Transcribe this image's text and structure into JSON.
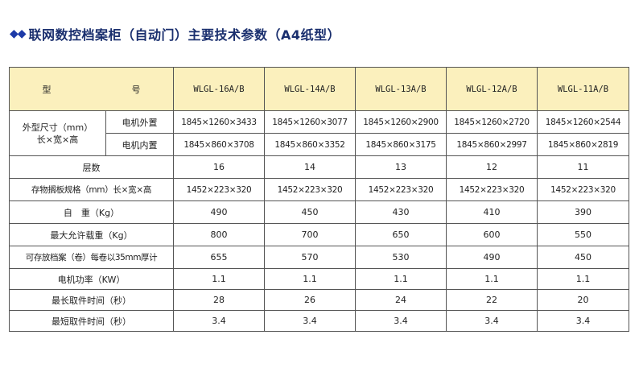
{
  "heading": {
    "bullets": "◆◆",
    "text": "联网数控档案柜（自动门）主要技术参数（A4纸型）"
  },
  "table": {
    "model_header": "型　　号",
    "models": [
      "WLGL-16A/B",
      "WLGL-14A/B",
      "WLGL-13A/B",
      "WLGL-12A/B",
      "WLGL-11A/B"
    ],
    "size_group": {
      "label_line1": "外型尺寸（mm）",
      "label_line2": "长×宽×高",
      "external": {
        "label": "电机外置",
        "values": [
          "1845×1260×3433",
          "1845×1260×3077",
          "1845×1260×2900",
          "1845×1260×2720",
          "1845×1260×2544"
        ]
      },
      "internal": {
        "label": "电机内置",
        "values": [
          "1845×860×3708",
          "1845×860×3352",
          "1845×860×3175",
          "1845×860×2997",
          "1845×860×2819"
        ]
      }
    },
    "rows": [
      {
        "label": "层数",
        "values": [
          "16",
          "14",
          "13",
          "12",
          "11"
        ]
      },
      {
        "label": "存物搁板规格（mm）长×宽×高",
        "values": [
          "1452×223×320",
          "1452×223×320",
          "1452×223×320",
          "1452×223×320",
          "1452×223×320"
        ]
      },
      {
        "label": "自　重（Kg）",
        "values": [
          "490",
          "450",
          "430",
          "410",
          "390"
        ]
      },
      {
        "label": "最大允许载重（Kg）",
        "values": [
          "800",
          "700",
          "650",
          "600",
          "550"
        ]
      },
      {
        "label": "可存放档案（卷）每卷以35mm厚计",
        "values": [
          "655",
          "570",
          "530",
          "490",
          "450"
        ]
      },
      {
        "label": "电机功率（KW）",
        "values": [
          "1.1",
          "1.1",
          "1.1",
          "1.1",
          "1.1"
        ]
      },
      {
        "label": "最长取件时间（秒）",
        "values": [
          "28",
          "26",
          "24",
          "22",
          "20"
        ]
      },
      {
        "label": "最短取件时间（秒）",
        "values": [
          "3.4",
          "3.4",
          "3.4",
          "3.4",
          "3.4"
        ]
      }
    ]
  },
  "colors": {
    "header_bg": "#fbf0bd",
    "title": "#1a2f6e",
    "bullet": "#1d3aa8",
    "border": "#555555"
  }
}
